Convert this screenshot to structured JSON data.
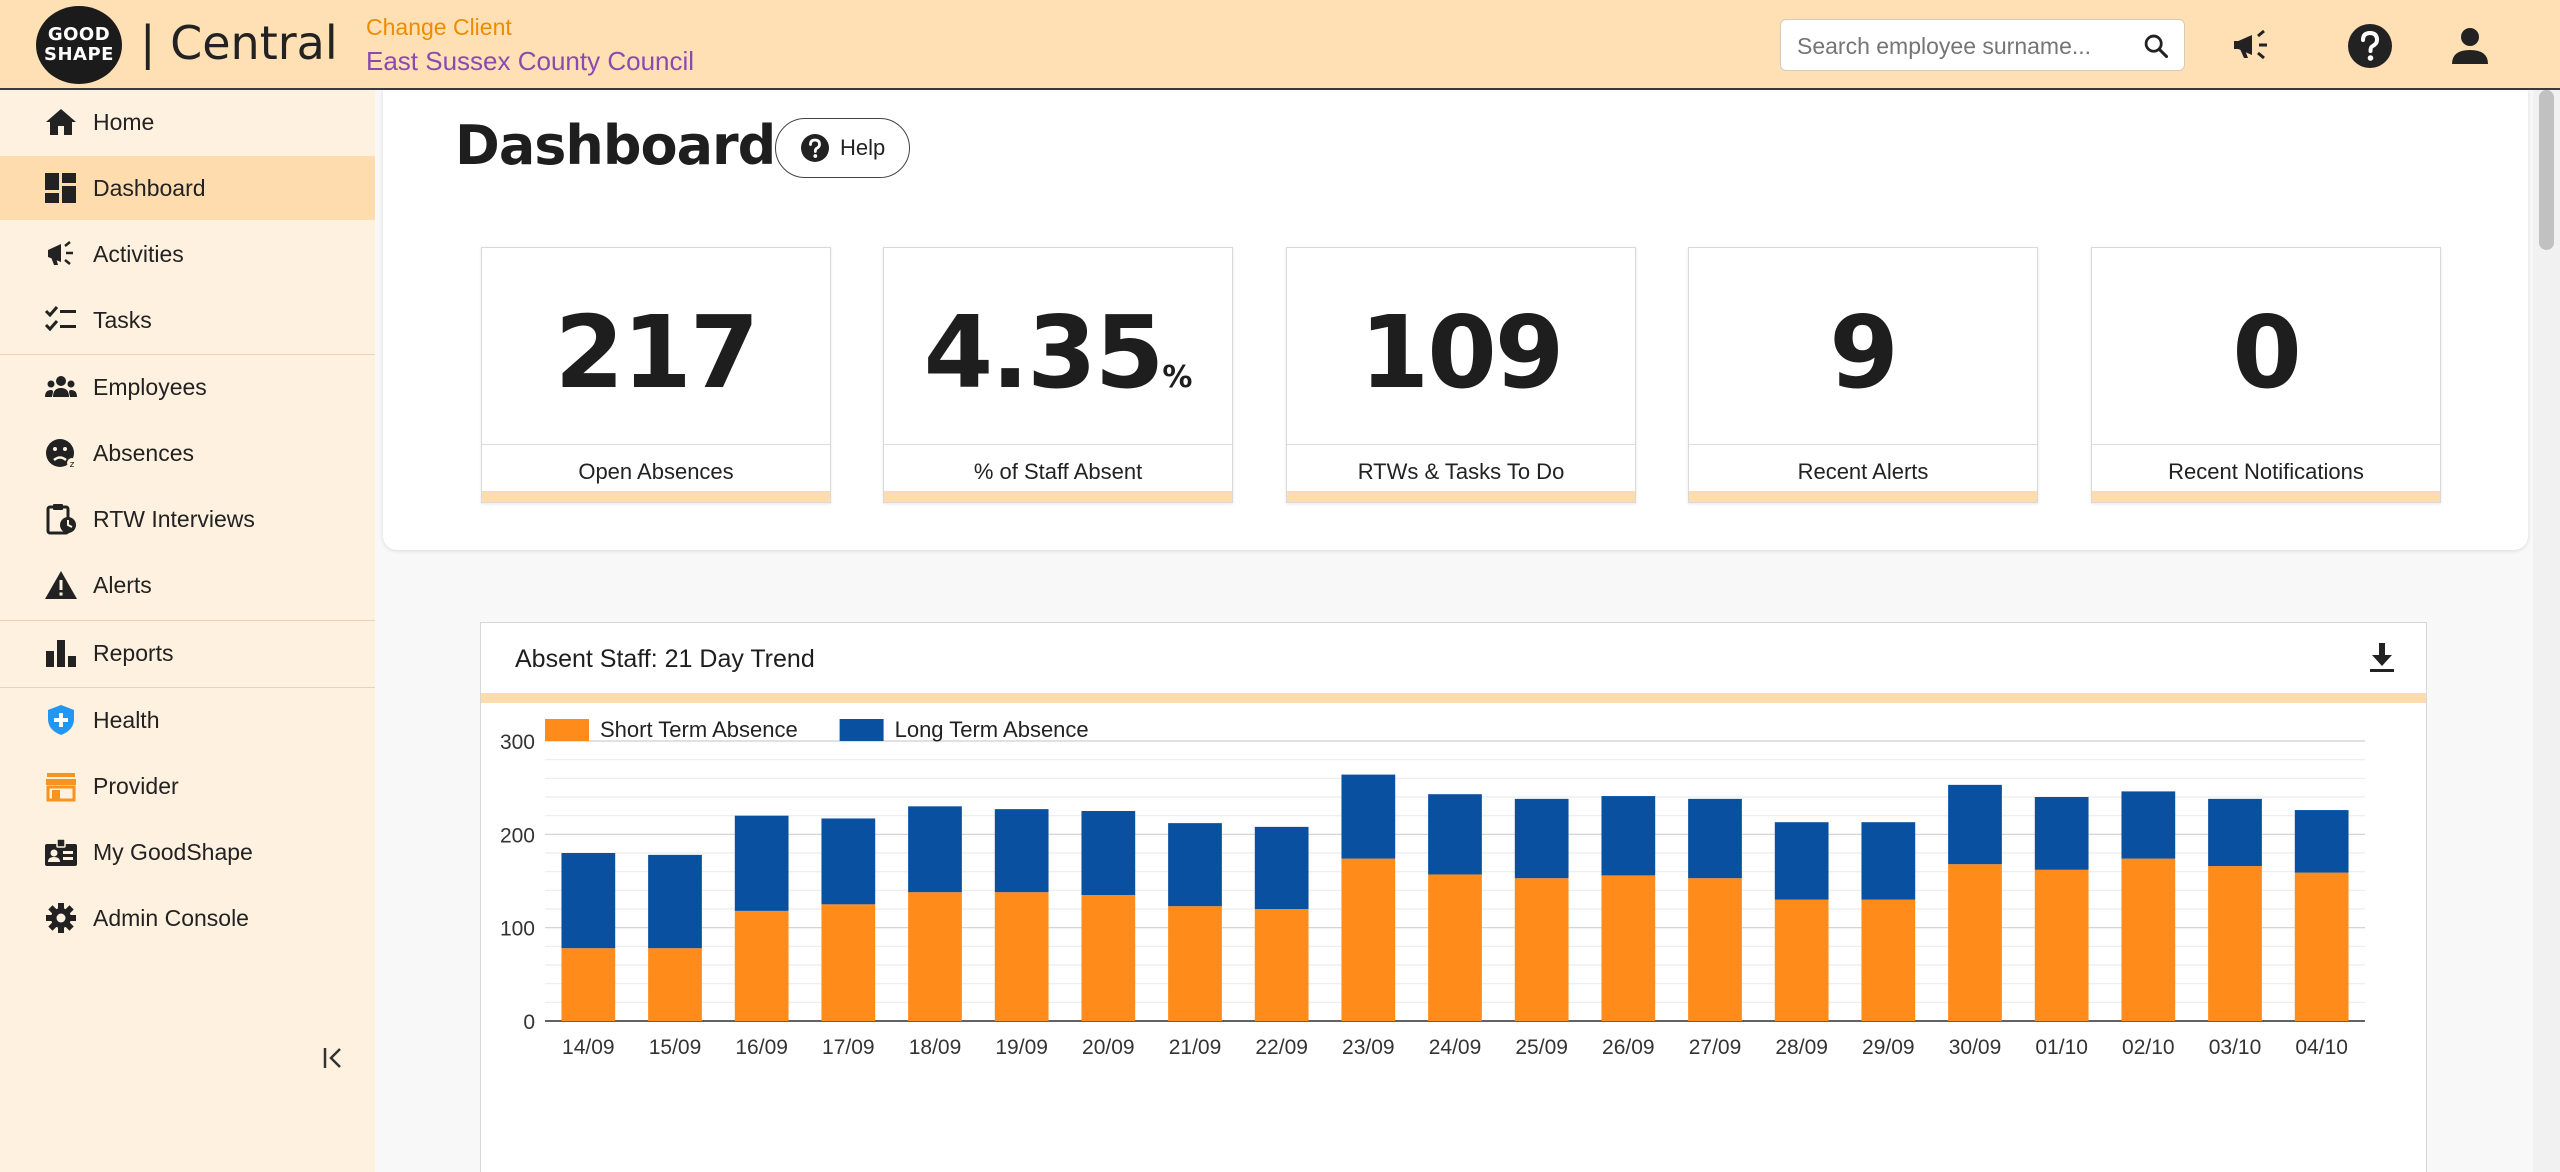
{
  "header": {
    "logo_line1": "GOOD",
    "logo_line2": "SHAPE",
    "brand": "| Central",
    "change_client": "Change Client",
    "client_name": "East Sussex County Council",
    "search_placeholder": "Search employee surname..."
  },
  "sidebar": {
    "items": [
      {
        "label": "Home",
        "icon": "home-icon"
      },
      {
        "label": "Dashboard",
        "icon": "dashboard-icon",
        "active": true
      },
      {
        "label": "Activities",
        "icon": "megaphone-icon"
      },
      {
        "label": "Tasks",
        "icon": "checklist-icon"
      },
      {
        "label": "Employees",
        "icon": "people-icon"
      },
      {
        "label": "Absences",
        "icon": "sad-face-icon"
      },
      {
        "label": "RTW Interviews",
        "icon": "clipboard-clock-icon"
      },
      {
        "label": "Alerts",
        "icon": "warning-icon"
      },
      {
        "label": "Reports",
        "icon": "bar-chart-icon"
      },
      {
        "label": "Health",
        "icon": "health-shield-icon"
      },
      {
        "label": "Provider",
        "icon": "store-icon"
      },
      {
        "label": "My GoodShape",
        "icon": "id-badge-icon"
      },
      {
        "label": "Admin Console",
        "icon": "gear-icon"
      }
    ]
  },
  "main": {
    "title": "Dashboard",
    "help_label": "Help",
    "stats": [
      {
        "value": "217",
        "unit": "",
        "label": "Open Absences"
      },
      {
        "value": "4.35",
        "unit": "%",
        "label": "% of Staff Absent"
      },
      {
        "value": "109",
        "unit": "",
        "label": "RTWs & Tasks To Do"
      },
      {
        "value": "9",
        "unit": "",
        "label": "Recent Alerts"
      },
      {
        "value": "0",
        "unit": "",
        "label": "Recent Notifications"
      }
    ],
    "chart_title": "Absent Staff: 21 Day Trend"
  },
  "colors": {
    "accent": "#ffdcae",
    "header_bg": "#ffe0b5",
    "short_term": "#ff8c1a",
    "long_term": "#0950a0",
    "change_client": "#f08a00",
    "client_name": "#8a4ab0"
  },
  "chart_data": {
    "type": "bar",
    "stacked": true,
    "categories": [
      "14/09",
      "15/09",
      "16/09",
      "17/09",
      "18/09",
      "19/09",
      "20/09",
      "21/09",
      "22/09",
      "23/09",
      "24/09",
      "25/09",
      "26/09",
      "27/09",
      "28/09",
      "29/09",
      "30/09",
      "01/10",
      "02/10",
      "03/10",
      "04/10"
    ],
    "series": [
      {
        "name": "Short Term Absence",
        "color": "#ff8c1a",
        "values": [
          78,
          78,
          118,
          125,
          138,
          138,
          135,
          123,
          120,
          174,
          157,
          153,
          156,
          153,
          130,
          130,
          168,
          162,
          174,
          166,
          159
        ]
      },
      {
        "name": "Long Term Absence",
        "color": "#0950a0",
        "values": [
          102,
          100,
          102,
          92,
          92,
          89,
          90,
          89,
          88,
          90,
          86,
          85,
          85,
          85,
          83,
          83,
          85,
          78,
          72,
          72,
          67
        ]
      }
    ],
    "ylim": [
      0,
      300
    ],
    "yticks": [
      0,
      100,
      200,
      300
    ],
    "grid": true,
    "legend": "top-left",
    "xlabel": "",
    "ylabel": ""
  }
}
